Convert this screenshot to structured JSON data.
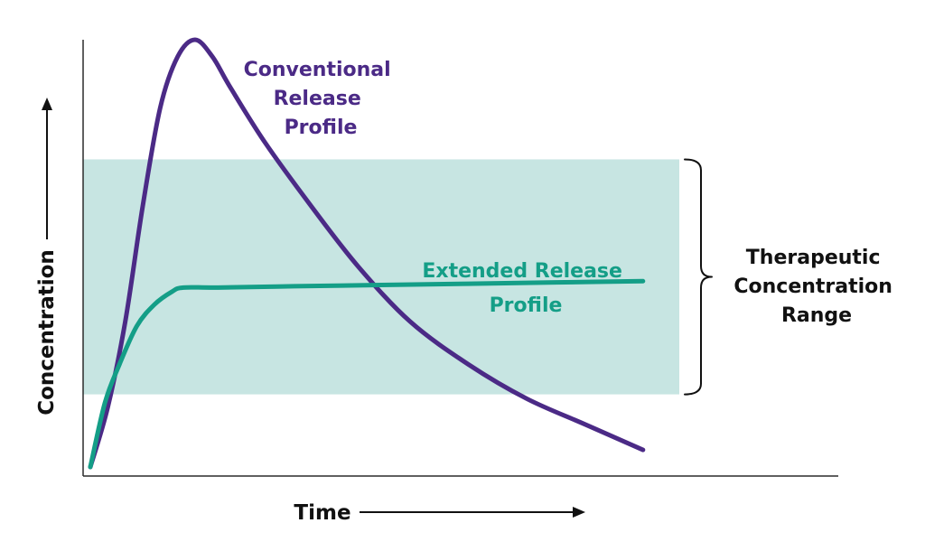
{
  "chart_data": {
    "type": "line",
    "xlabel": "Time",
    "ylabel": "Concentration",
    "xlim": [
      0,
      10
    ],
    "ylim": [
      0,
      100
    ],
    "grid": false,
    "colors": {
      "conventional": "#4B2A86",
      "extended": "#149E87",
      "band": "#C7E5E2",
      "axis": "#2B2B2B"
    },
    "therapeutic_range": {
      "label_lines": [
        "Therapeutic",
        "Concentration",
        "Range"
      ],
      "ymin": 17,
      "ymax": 72
    },
    "series": [
      {
        "name_lines": [
          "Conventional",
          "Release",
          "Profile"
        ],
        "color": "#4B2A86",
        "x": [
          0,
          0.3,
          0.6,
          0.9,
          1.2,
          1.5,
          1.8,
          2.1,
          2.4,
          3,
          3.8,
          4.6,
          5.5,
          6.5,
          7.5,
          8.5,
          9.5
        ],
        "y": [
          0,
          14,
          34,
          61,
          84,
          96,
          100,
          96,
          89,
          76,
          61,
          47,
          34,
          24,
          16,
          10,
          4
        ]
      },
      {
        "name_lines": [
          "Extended Release",
          "Profile"
        ],
        "color": "#149E87",
        "x": [
          0,
          0.25,
          0.5,
          0.8,
          1.1,
          1.4,
          1.6,
          2.2,
          3.5,
          5,
          6.5,
          8,
          9.5
        ],
        "y": [
          0,
          15,
          24,
          33,
          38,
          41,
          42,
          42,
          42.3,
          42.6,
          42.9,
          43.2,
          43.5
        ]
      }
    ]
  }
}
